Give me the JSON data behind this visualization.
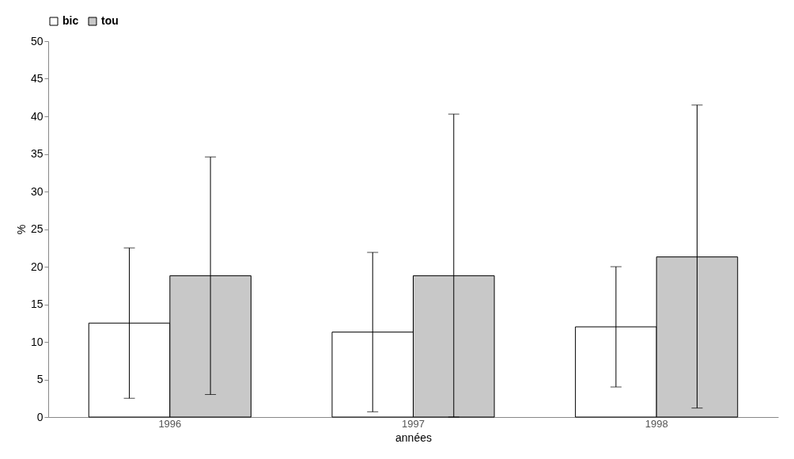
{
  "chart_data": {
    "type": "bar",
    "xlabel": "années",
    "ylabel": "%",
    "categories": [
      "1996",
      "1997",
      "1998"
    ],
    "series": [
      {
        "name": "bic",
        "color": "#ffffff",
        "values": [
          12.5,
          11.3,
          12.0
        ],
        "errors": [
          10.0,
          10.6,
          8.0
        ]
      },
      {
        "name": "tou",
        "color": "#c8c8c8",
        "values": [
          18.8,
          18.8,
          21.3
        ],
        "errors": [
          [
            3.0,
            34.6
          ],
          [
            0,
            40.3
          ],
          [
            1.2,
            41.5
          ]
        ]
      }
    ],
    "ylim": [
      0,
      50
    ],
    "yticks": [
      0,
      5,
      10,
      15,
      20,
      25,
      30,
      35,
      40,
      45,
      50
    ],
    "grid": false,
    "legend": "top"
  }
}
